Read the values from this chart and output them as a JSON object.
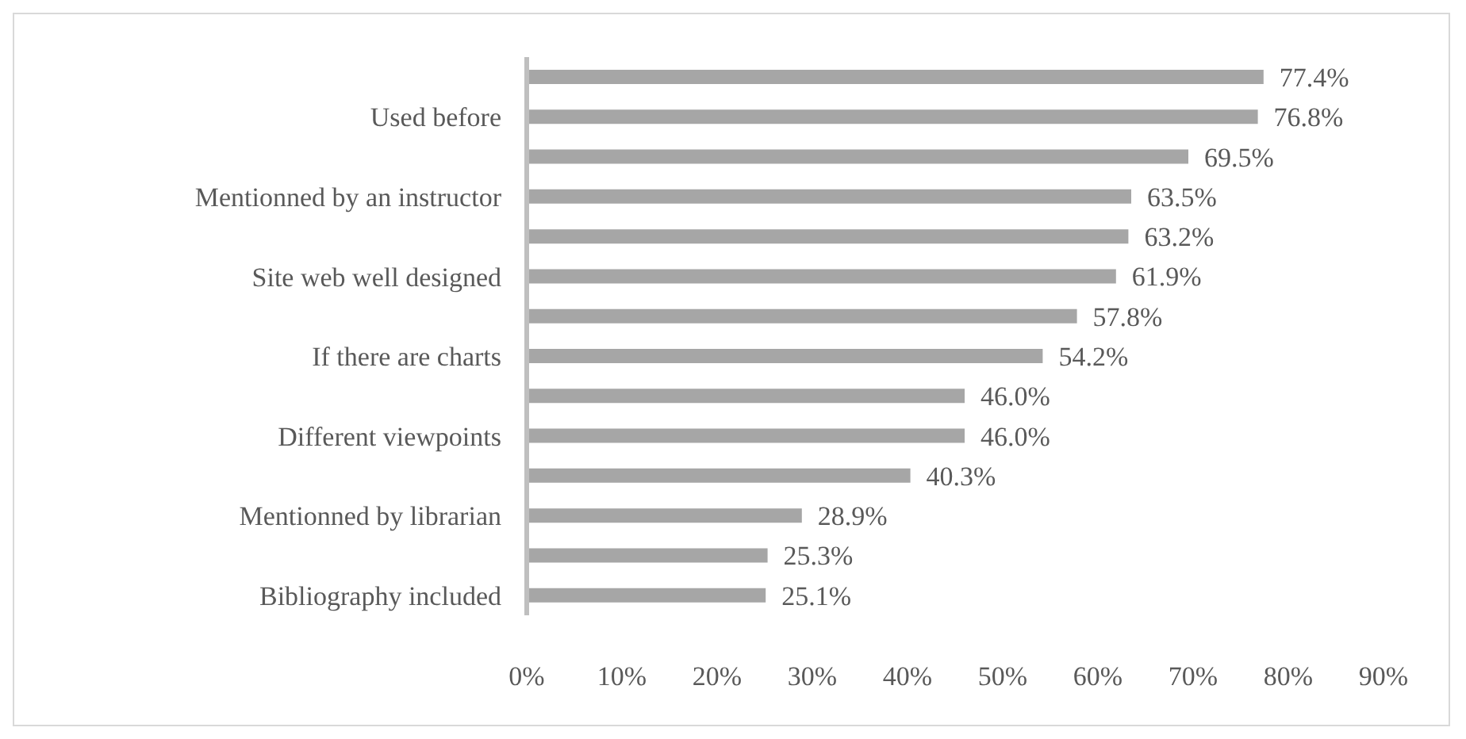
{
  "chart_data": {
    "type": "bar",
    "orientation": "horizontal",
    "categories": [
      null,
      "Used before",
      null,
      "Mentionned by an instructor",
      null,
      "Site web well designed",
      null,
      "If there are charts",
      null,
      "Different viewpoints",
      null,
      "Mentionned by librarian",
      null,
      "Bibliography included"
    ],
    "values": [
      77.4,
      76.8,
      69.5,
      63.5,
      63.2,
      61.9,
      57.8,
      54.2,
      46.0,
      46.0,
      40.3,
      28.9,
      25.3,
      25.1
    ],
    "value_labels": [
      "77.4%",
      "76.8%",
      "69.5%",
      "63.5%",
      "63.2%",
      "61.9%",
      "57.8%",
      "54.2%",
      "46.0%",
      "46.0%",
      "40.3%",
      "28.9%",
      "25.3%",
      "25.1%"
    ],
    "color": "#a6a6a6",
    "xlim": [
      0,
      90
    ],
    "xticks": [
      {
        "value": 0,
        "label": "0%"
      },
      {
        "value": 10,
        "label": "10%"
      },
      {
        "value": 20,
        "label": "20%"
      },
      {
        "value": 30,
        "label": "30%"
      },
      {
        "value": 40,
        "label": "40%"
      },
      {
        "value": 50,
        "label": "50%"
      },
      {
        "value": 60,
        "label": "60%"
      },
      {
        "value": 70,
        "label": "70%"
      },
      {
        "value": 80,
        "label": "80%"
      },
      {
        "value": 90,
        "label": "90%"
      }
    ],
    "grid": false,
    "legend": false
  }
}
